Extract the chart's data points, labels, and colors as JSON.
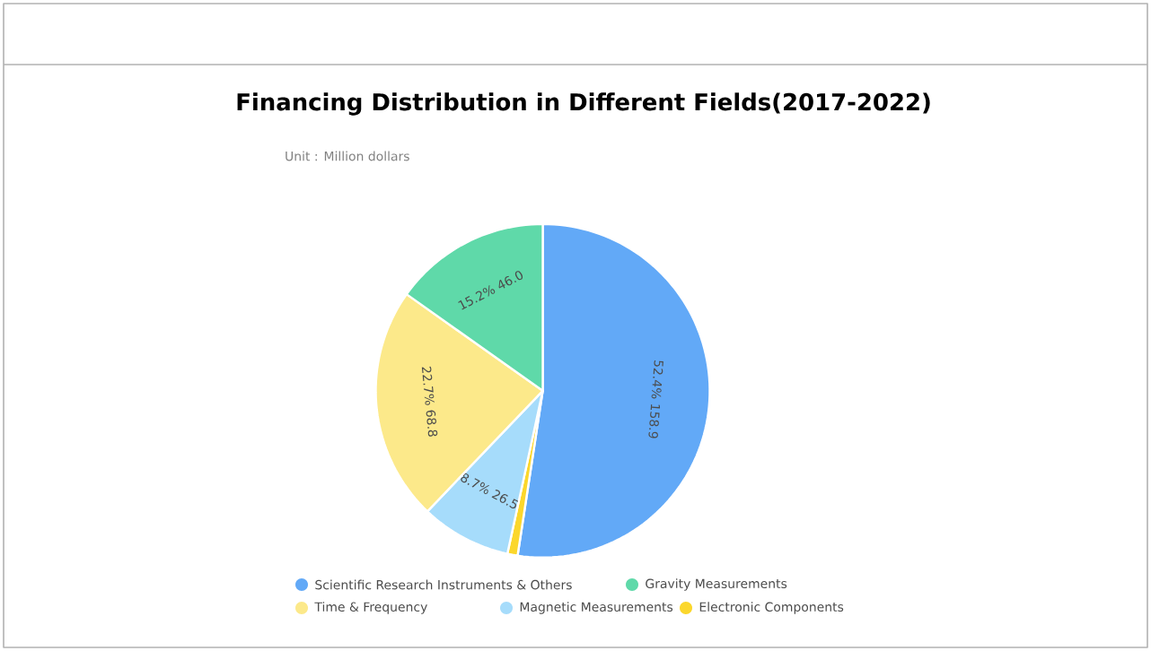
{
  "chart_data": {
    "type": "pie",
    "title": "Financing Distribution in Different Fields(2017-2022)",
    "annotations": [
      "Unit : Million dollars"
    ],
    "categories": [
      "Scientific Research Instruments & Others",
      "Gravity Measurements",
      "Time & Frequency",
      "Magnetic Measurements",
      "Electronic Components"
    ],
    "values": [
      158.9,
      46.0,
      68.8,
      26.5,
      3.0
    ],
    "colors": [
      "#62a9f7",
      "#5fd9a9",
      "#fce98a",
      "#a6dcfb",
      "#fbd72c"
    ],
    "value_labels": [
      "52.4% 158.9",
      "15.2% 46.0",
      "22.7% 68.8",
      "8.7% 26.5",
      null
    ],
    "legend": "bottom"
  }
}
